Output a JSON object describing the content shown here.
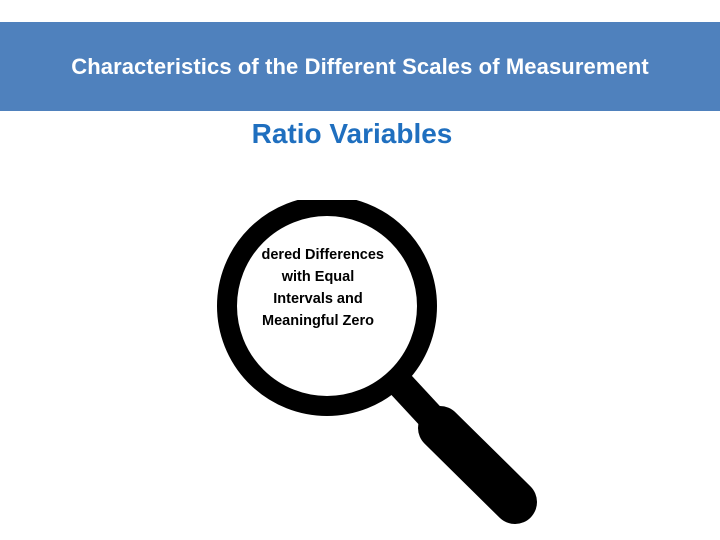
{
  "header": {
    "title": "Characteristics of the Different Scales of Measurement"
  },
  "slide": {
    "subtitle": "Ratio Variables"
  },
  "magnifier": {
    "icon": "magnifying-glass-icon",
    "lines": [
      "dered Differences",
      "with Equal",
      "Intervals and",
      "Meaningful Zero"
    ]
  },
  "colors": {
    "header_bg": "#4f81bd",
    "header_text": "#ffffff",
    "subtitle": "#1f6fbf",
    "glass": "#000000"
  }
}
